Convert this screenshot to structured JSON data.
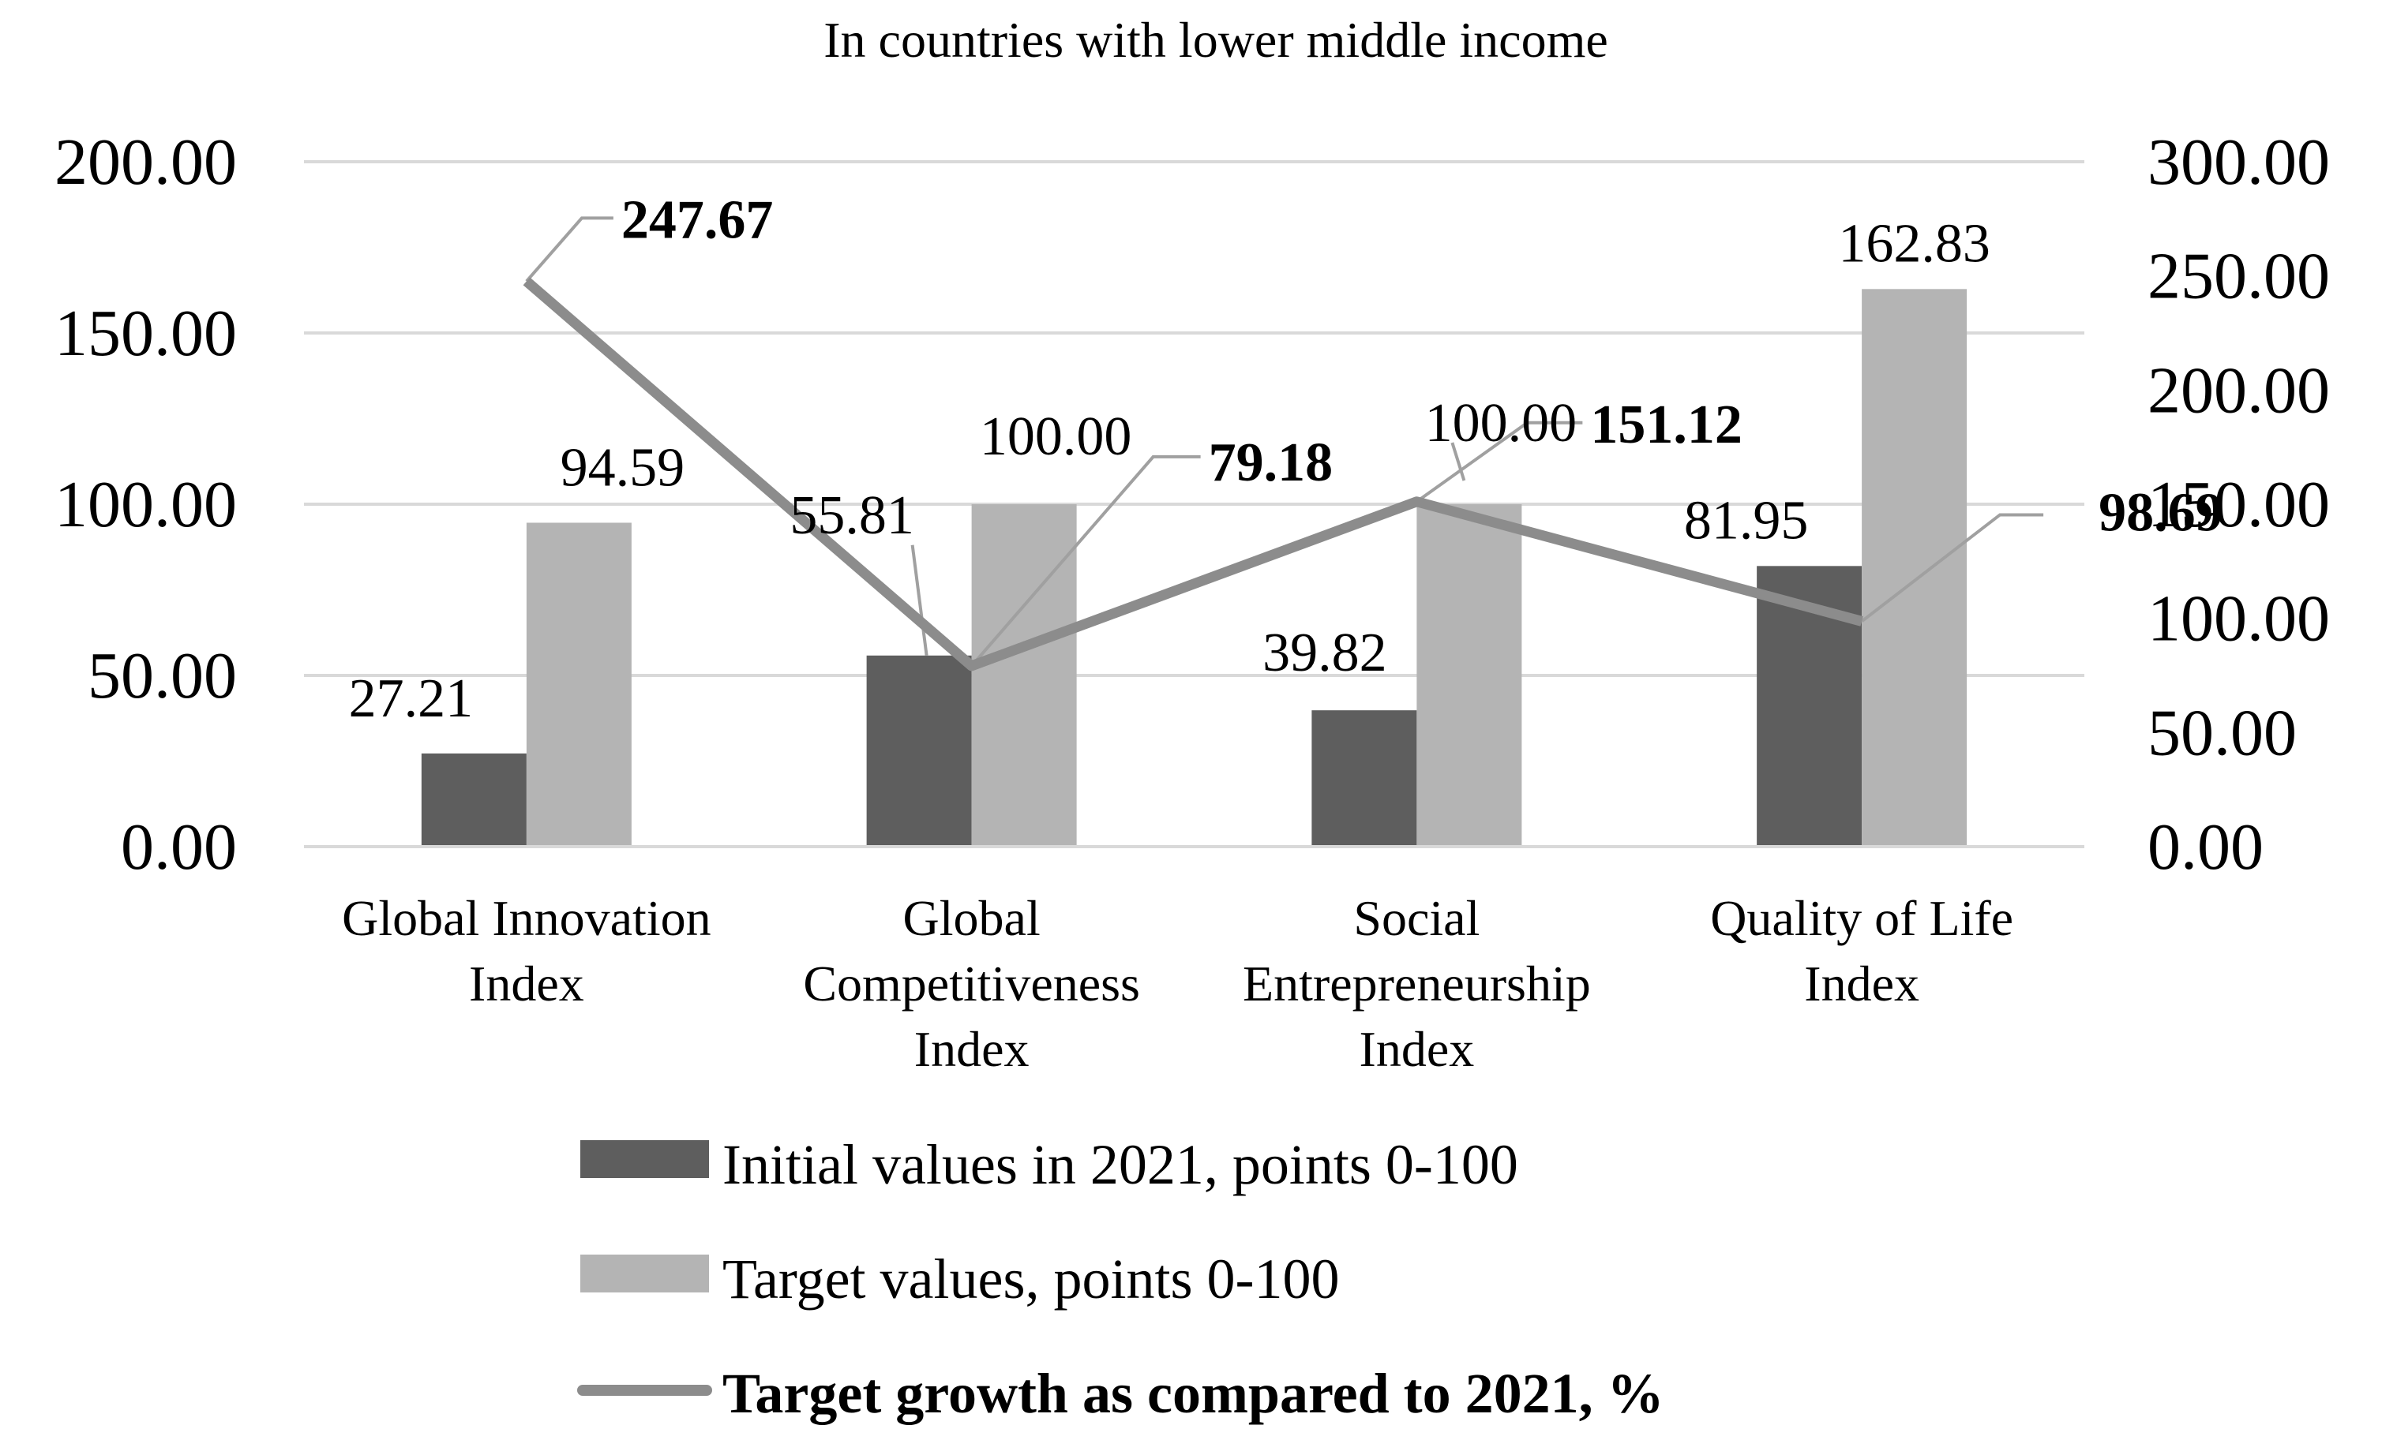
{
  "chart_data": {
    "type": "bar",
    "title": "In countries with lower middle income",
    "categories": [
      [
        "Global Innovation",
        "Index"
      ],
      [
        "Global",
        "Competitiveness",
        "Index"
      ],
      [
        "Social",
        "Entrepreneurship",
        "Index"
      ],
      [
        "Quality of Life",
        "Index"
      ]
    ],
    "series": [
      {
        "name": "Initial values in 2021, points 0-100",
        "type": "bar",
        "axis": "left",
        "color": "#5e5e5e",
        "values": [
          27.21,
          55.81,
          39.82,
          81.95
        ],
        "labels": [
          "27.21",
          "55.81",
          "39.82",
          "81.95"
        ]
      },
      {
        "name": "Target values, points 0-100",
        "type": "bar",
        "axis": "left",
        "color": "#b4b4b4",
        "values": [
          94.59,
          100.0,
          100.0,
          162.83
        ],
        "labels": [
          "94.59",
          "100.00",
          "100.00",
          "162.83"
        ]
      },
      {
        "name": "Target growth as compared to 2021, %",
        "type": "line",
        "axis": "right",
        "color": "#8c8c8c",
        "values": [
          247.67,
          79.18,
          151.12,
          98.69
        ],
        "labels": [
          "247.67",
          "79.18",
          "151.12",
          "98.69"
        ]
      }
    ],
    "y_left": {
      "min": 0,
      "max": 200,
      "step": 50,
      "ticks": [
        "0.00",
        "50.00",
        "100.00",
        "150.00",
        "200.00"
      ]
    },
    "y_right": {
      "min": 0,
      "max": 300,
      "step": 50,
      "ticks": [
        "0.00",
        "50.00",
        "100.00",
        "150.00",
        "200.00",
        "250.00",
        "300.00"
      ]
    },
    "grid": true,
    "legend_position": "bottom"
  }
}
